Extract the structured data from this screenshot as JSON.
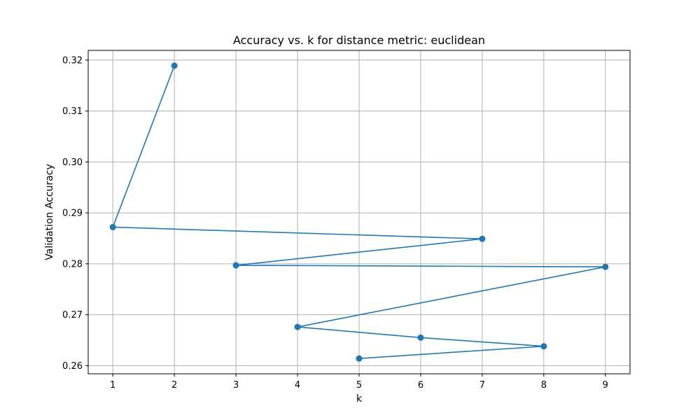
{
  "chart_data": {
    "type": "line",
    "title": "Accuracy vs. k for distance metric: euclidean",
    "xlabel": "k",
    "ylabel": "Validation Accuracy",
    "xlim": [
      0.6,
      9.4
    ],
    "ylim": [
      0.2584,
      0.3219
    ],
    "grid": true,
    "x_ticks": [
      1,
      2,
      3,
      4,
      5,
      6,
      7,
      8,
      9
    ],
    "x_tick_labels": [
      "1",
      "2",
      "3",
      "4",
      "5",
      "6",
      "7",
      "8",
      "9"
    ],
    "y_ticks": [
      0.26,
      0.27,
      0.28,
      0.29,
      0.3,
      0.31,
      0.32
    ],
    "y_tick_labels": [
      "0.26",
      "0.27",
      "0.28",
      "0.29",
      "0.30",
      "0.31",
      "0.32"
    ],
    "series": [
      {
        "name": "euclidean",
        "color": "#1f77b4",
        "x": [
          2,
          1,
          7,
          3,
          9,
          4,
          6,
          8,
          5
        ],
        "y": [
          0.3189,
          0.2872,
          0.2849,
          0.2797,
          0.2794,
          0.2676,
          0.2655,
          0.2638,
          0.2614
        ]
      }
    ]
  }
}
